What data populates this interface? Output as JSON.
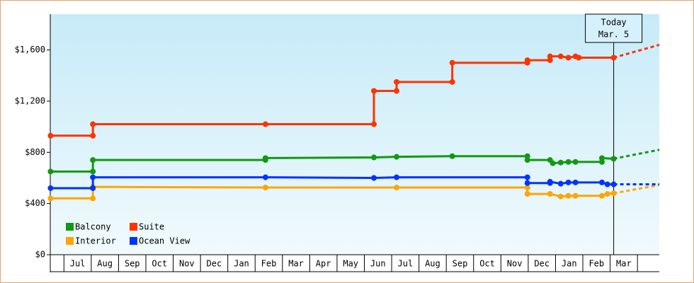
{
  "chart_data": {
    "type": "line",
    "categories": [
      null,
      "Jul",
      "Aug",
      "Sep",
      "Oct",
      "Nov",
      "Dec",
      "Jan",
      "Feb",
      "Mar",
      "Apr",
      "May",
      "Jun",
      "Jul",
      "Aug",
      "Sep",
      "Oct",
      "Nov",
      "Dec",
      "Jan",
      "Feb",
      "Mar",
      null
    ],
    "xlim": [
      0.5,
      22.8
    ],
    "ylim": [
      0,
      1880
    ],
    "yticks": [
      {
        "value": 0,
        "label": "$0"
      },
      {
        "value": 400,
        "label": "$400"
      },
      {
        "value": 800,
        "label": "$800"
      },
      {
        "value": 1200,
        "label": "$1,200"
      },
      {
        "value": 1600,
        "label": "$1,600"
      }
    ],
    "today": {
      "x": 21.13,
      "label": [
        "Today",
        "Mar. 5"
      ]
    },
    "series": [
      {
        "name": "Balcony",
        "color": "#119911",
        "x": [
          0.51,
          2.06,
          2.06,
          8.38,
          8.38,
          12.35,
          13.18,
          15.22,
          17.97,
          17.97,
          18.8,
          18.9,
          19.19,
          19.47,
          19.73,
          20.7,
          20.7,
          21.13
        ],
        "values": [
          650,
          650,
          740,
          740,
          755,
          760,
          765,
          770,
          770,
          740,
          740,
          715,
          720,
          725,
          725,
          725,
          755,
          750
        ],
        "forecast": {
          "x": [
            21.13,
            22.8
          ],
          "values": [
            750,
            820
          ]
        }
      },
      {
        "name": "Suite",
        "color": "#ff3300",
        "x": [
          0.51,
          2.06,
          2.06,
          8.38,
          12.35,
          12.35,
          13.18,
          13.18,
          15.22,
          15.22,
          17.97,
          17.97,
          18.8,
          18.8,
          19.19,
          19.47,
          19.73,
          19.85,
          21.13
        ],
        "values": [
          930,
          930,
          1020,
          1020,
          1020,
          1280,
          1280,
          1350,
          1350,
          1500,
          1500,
          1520,
          1520,
          1550,
          1550,
          1540,
          1550,
          1540,
          1540
        ],
        "forecast": {
          "x": [
            21.13,
            22.8
          ],
          "values": [
            1540,
            1640
          ]
        }
      },
      {
        "name": "Interior",
        "color": "#ffa500",
        "x": [
          0.51,
          2.06,
          2.06,
          8.38,
          13.18,
          17.97,
          17.97,
          18.8,
          19.19,
          19.47,
          19.73,
          20.7,
          20.9,
          21.13
        ],
        "values": [
          440,
          440,
          530,
          525,
          525,
          525,
          475,
          475,
          455,
          460,
          460,
          460,
          475,
          480
        ],
        "forecast": {
          "x": [
            21.13,
            22.8
          ],
          "values": [
            480,
            545
          ]
        }
      },
      {
        "name": "Ocean View",
        "color": "#0033ff",
        "x": [
          0.51,
          2.06,
          2.06,
          8.38,
          12.35,
          13.18,
          17.97,
          17.97,
          18.8,
          18.8,
          19.19,
          19.47,
          19.73,
          20.7,
          20.9,
          21.13
        ],
        "values": [
          520,
          520,
          605,
          605,
          600,
          605,
          605,
          560,
          560,
          570,
          555,
          565,
          565,
          565,
          550,
          550
        ],
        "forecast": {
          "x": [
            21.13,
            22.8
          ],
          "values": [
            550,
            550
          ]
        }
      }
    ]
  }
}
